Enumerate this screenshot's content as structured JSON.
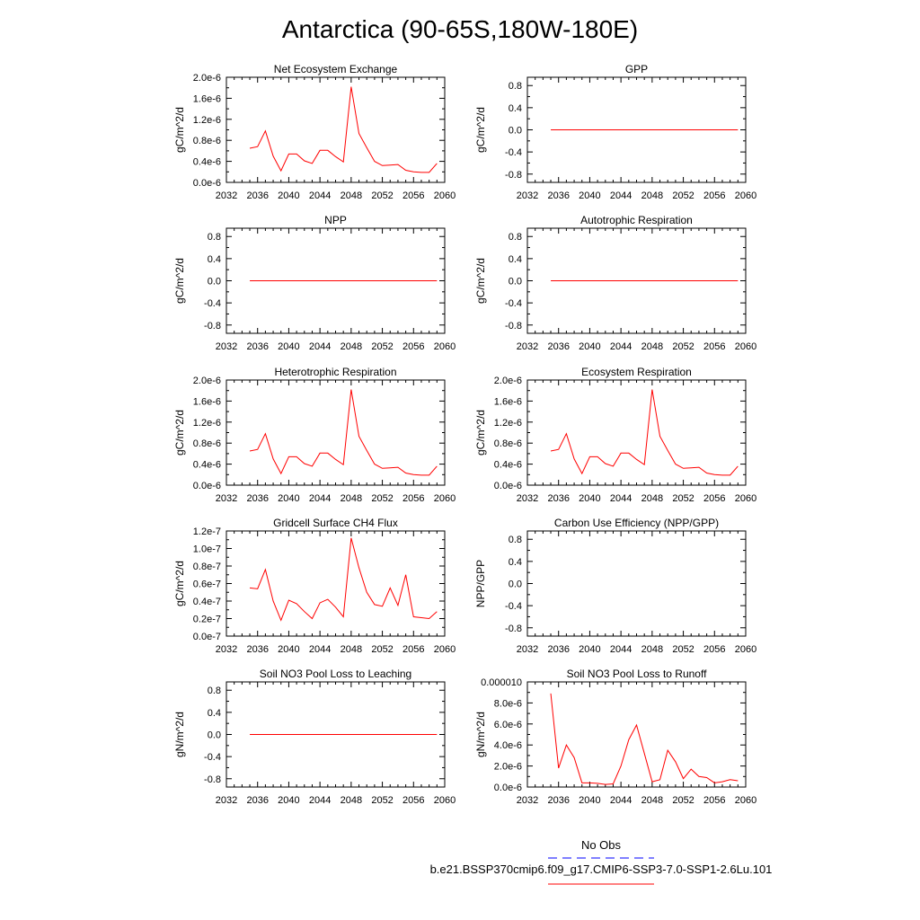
{
  "figure": {
    "title": "Antarctica (90-65S,180W-180E)"
  },
  "legend": {
    "entries": [
      {
        "label": "No Obs",
        "color": "#0000ff",
        "style": "dashed"
      },
      {
        "label": "b.e21.BSSP370cmip6.f09_g17.CMIP6-SSP3-7.0-SSP1-2.6Lu.101",
        "color": "#ff0000",
        "style": "solid"
      }
    ]
  },
  "chart_data": [
    {
      "type": "line",
      "title": "Net Ecosystem Exchange",
      "ylabel": "gC/m^2/d",
      "xlim": [
        2032,
        2060
      ],
      "xticks": [
        "2032",
        "2036",
        "2040",
        "2044",
        "2048",
        "2052",
        "2056",
        "2060"
      ],
      "ylim": [
        0,
        2e-06
      ],
      "yticks": [
        {
          "v": 0,
          "label": "0.0e-6"
        },
        {
          "v": 4e-07,
          "label": "0.4e-6"
        },
        {
          "v": 8e-07,
          "label": "0.8e-6"
        },
        {
          "v": 1.2e-06,
          "label": "1.2e-6"
        },
        {
          "v": 1.6e-06,
          "label": "1.6e-6"
        },
        {
          "v": 2e-06,
          "label": "2.0e-6"
        }
      ],
      "series": [
        {
          "color": "#ff0000",
          "x": [
            2035,
            2036,
            2037,
            2038,
            2039,
            2040,
            2041,
            2042,
            2043,
            2044,
            2045,
            2046,
            2047,
            2048,
            2049,
            2050,
            2051,
            2052,
            2053,
            2054,
            2055,
            2056,
            2057,
            2058,
            2059
          ],
          "values": [
            6.5e-07,
            6.8e-07,
            9.8e-07,
            5e-07,
            2.2e-07,
            5.4e-07,
            5.4e-07,
            4.1e-07,
            3.6e-07,
            6.1e-07,
            6.1e-07,
            4.9e-07,
            3.9e-07,
            1.82e-06,
            9.3e-07,
            6.6e-07,
            4e-07,
            3.2e-07,
            3.3e-07,
            3.4e-07,
            2.3e-07,
            2e-07,
            1.9e-07,
            1.9e-07,
            3.6e-07
          ]
        }
      ]
    },
    {
      "type": "line",
      "title": "GPP",
      "ylabel": "gC/m^2/d",
      "xlim": [
        2032,
        2060
      ],
      "xticks": [
        "2032",
        "2036",
        "2040",
        "2044",
        "2048",
        "2052",
        "2056",
        "2060"
      ],
      "ylim": [
        -0.95,
        0.95
      ],
      "yticks": [
        {
          "v": -0.8,
          "label": "-0.8"
        },
        {
          "v": -0.4,
          "label": "-0.4"
        },
        {
          "v": 0,
          "label": "0.0"
        },
        {
          "v": 0.4,
          "label": "0.4"
        },
        {
          "v": 0.8,
          "label": "0.8"
        }
      ],
      "series": [
        {
          "color": "#ff0000",
          "x": [
            2035,
            2059
          ],
          "values": [
            0,
            0
          ]
        }
      ]
    },
    {
      "type": "line",
      "title": "NPP",
      "ylabel": "gC/m^2/d",
      "xlim": [
        2032,
        2060
      ],
      "xticks": [
        "2032",
        "2036",
        "2040",
        "2044",
        "2048",
        "2052",
        "2056",
        "2060"
      ],
      "ylim": [
        -0.95,
        0.95
      ],
      "yticks": [
        {
          "v": -0.8,
          "label": "-0.8"
        },
        {
          "v": -0.4,
          "label": "-0.4"
        },
        {
          "v": 0,
          "label": "0.0"
        },
        {
          "v": 0.4,
          "label": "0.4"
        },
        {
          "v": 0.8,
          "label": "0.8"
        }
      ],
      "series": [
        {
          "color": "#ff0000",
          "x": [
            2035,
            2059
          ],
          "values": [
            0,
            0
          ]
        }
      ]
    },
    {
      "type": "line",
      "title": "Autotrophic Respiration",
      "ylabel": "gC/m^2/d",
      "xlim": [
        2032,
        2060
      ],
      "xticks": [
        "2032",
        "2036",
        "2040",
        "2044",
        "2048",
        "2052",
        "2056",
        "2060"
      ],
      "ylim": [
        -0.95,
        0.95
      ],
      "yticks": [
        {
          "v": -0.8,
          "label": "-0.8"
        },
        {
          "v": -0.4,
          "label": "-0.4"
        },
        {
          "v": 0,
          "label": "0.0"
        },
        {
          "v": 0.4,
          "label": "0.4"
        },
        {
          "v": 0.8,
          "label": "0.8"
        }
      ],
      "series": [
        {
          "color": "#ff0000",
          "x": [
            2035,
            2059
          ],
          "values": [
            0,
            0
          ]
        }
      ]
    },
    {
      "type": "line",
      "title": "Heterotrophic Respiration",
      "ylabel": "gC/m^2/d",
      "xlim": [
        2032,
        2060
      ],
      "xticks": [
        "2032",
        "2036",
        "2040",
        "2044",
        "2048",
        "2052",
        "2056",
        "2060"
      ],
      "ylim": [
        0,
        2e-06
      ],
      "yticks": [
        {
          "v": 0,
          "label": "0.0e-6"
        },
        {
          "v": 4e-07,
          "label": "0.4e-6"
        },
        {
          "v": 8e-07,
          "label": "0.8e-6"
        },
        {
          "v": 1.2e-06,
          "label": "1.2e-6"
        },
        {
          "v": 1.6e-06,
          "label": "1.6e-6"
        },
        {
          "v": 2e-06,
          "label": "2.0e-6"
        }
      ],
      "series": [
        {
          "color": "#ff0000",
          "x": [
            2035,
            2036,
            2037,
            2038,
            2039,
            2040,
            2041,
            2042,
            2043,
            2044,
            2045,
            2046,
            2047,
            2048,
            2049,
            2050,
            2051,
            2052,
            2053,
            2054,
            2055,
            2056,
            2057,
            2058,
            2059
          ],
          "values": [
            6.5e-07,
            6.8e-07,
            9.8e-07,
            5e-07,
            2.2e-07,
            5.4e-07,
            5.4e-07,
            4.1e-07,
            3.6e-07,
            6.1e-07,
            6.1e-07,
            4.9e-07,
            3.9e-07,
            1.82e-06,
            9.3e-07,
            6.6e-07,
            4e-07,
            3.2e-07,
            3.3e-07,
            3.4e-07,
            2.3e-07,
            2e-07,
            1.9e-07,
            1.9e-07,
            3.6e-07
          ]
        }
      ]
    },
    {
      "type": "line",
      "title": "Ecosystem Respiration",
      "ylabel": "gC/m^2/d",
      "xlim": [
        2032,
        2060
      ],
      "xticks": [
        "2032",
        "2036",
        "2040",
        "2044",
        "2048",
        "2052",
        "2056",
        "2060"
      ],
      "ylim": [
        0,
        2e-06
      ],
      "yticks": [
        {
          "v": 0,
          "label": "0.0e-6"
        },
        {
          "v": 4e-07,
          "label": "0.4e-6"
        },
        {
          "v": 8e-07,
          "label": "0.8e-6"
        },
        {
          "v": 1.2e-06,
          "label": "1.2e-6"
        },
        {
          "v": 1.6e-06,
          "label": "1.6e-6"
        },
        {
          "v": 2e-06,
          "label": "2.0e-6"
        }
      ],
      "series": [
        {
          "color": "#ff0000",
          "x": [
            2035,
            2036,
            2037,
            2038,
            2039,
            2040,
            2041,
            2042,
            2043,
            2044,
            2045,
            2046,
            2047,
            2048,
            2049,
            2050,
            2051,
            2052,
            2053,
            2054,
            2055,
            2056,
            2057,
            2058,
            2059
          ],
          "values": [
            6.5e-07,
            6.8e-07,
            9.8e-07,
            5e-07,
            2.2e-07,
            5.4e-07,
            5.4e-07,
            4.1e-07,
            3.6e-07,
            6.1e-07,
            6.1e-07,
            4.9e-07,
            3.9e-07,
            1.82e-06,
            9.3e-07,
            6.6e-07,
            4e-07,
            3.2e-07,
            3.3e-07,
            3.4e-07,
            2.3e-07,
            2e-07,
            1.9e-07,
            1.9e-07,
            3.6e-07
          ]
        }
      ]
    },
    {
      "type": "line",
      "title": "Gridcell Surface CH4 Flux",
      "ylabel": "gC/m^2/d",
      "xlim": [
        2032,
        2060
      ],
      "xticks": [
        "2032",
        "2036",
        "2040",
        "2044",
        "2048",
        "2052",
        "2056",
        "2060"
      ],
      "ylim": [
        0,
        1.2e-07
      ],
      "yticks": [
        {
          "v": 0,
          "label": "0.0e-7"
        },
        {
          "v": 2e-08,
          "label": "0.2e-7"
        },
        {
          "v": 4e-08,
          "label": "0.4e-7"
        },
        {
          "v": 6e-08,
          "label": "0.6e-7"
        },
        {
          "v": 8e-08,
          "label": "0.8e-7"
        },
        {
          "v": 1e-07,
          "label": "1.0e-7"
        },
        {
          "v": 1.2e-07,
          "label": "1.2e-7"
        }
      ],
      "series": [
        {
          "color": "#ff0000",
          "x": [
            2035,
            2036,
            2037,
            2038,
            2039,
            2040,
            2041,
            2042,
            2043,
            2044,
            2045,
            2046,
            2047,
            2048,
            2049,
            2050,
            2051,
            2052,
            2053,
            2054,
            2055,
            2056,
            2057,
            2058,
            2059
          ],
          "values": [
            5.5e-08,
            5.4e-08,
            7.6e-08,
            4e-08,
            1.8e-08,
            4.1e-08,
            3.7e-08,
            2.8e-08,
            2e-08,
            3.8e-08,
            4.2e-08,
            3.3e-08,
            2.2e-08,
            1.12e-07,
            7.8e-08,
            5e-08,
            3.6e-08,
            3.4e-08,
            5.5e-08,
            3.5e-08,
            7e-08,
            2.2e-08,
            2.1e-08,
            2e-08,
            2.8e-08
          ]
        }
      ]
    },
    {
      "type": "line",
      "title": "Carbon Use Efficiency (NPP/GPP)",
      "ylabel": "NPP/GPP",
      "xlim": [
        2032,
        2060
      ],
      "xticks": [
        "2032",
        "2036",
        "2040",
        "2044",
        "2048",
        "2052",
        "2056",
        "2060"
      ],
      "ylim": [
        -0.95,
        0.95
      ],
      "yticks": [
        {
          "v": -0.8,
          "label": "-0.8"
        },
        {
          "v": -0.4,
          "label": "-0.4"
        },
        {
          "v": 0,
          "label": "0.0"
        },
        {
          "v": 0.4,
          "label": "0.4"
        },
        {
          "v": 0.8,
          "label": "0.8"
        }
      ],
      "series": []
    },
    {
      "type": "line",
      "title": "Soil NO3 Pool Loss to Leaching",
      "ylabel": "gN/m^2/d",
      "xlim": [
        2032,
        2060
      ],
      "xticks": [
        "2032",
        "2036",
        "2040",
        "2044",
        "2048",
        "2052",
        "2056",
        "2060"
      ],
      "ylim": [
        -0.95,
        0.95
      ],
      "yticks": [
        {
          "v": -0.8,
          "label": "-0.8"
        },
        {
          "v": -0.4,
          "label": "-0.4"
        },
        {
          "v": 0,
          "label": "0.0"
        },
        {
          "v": 0.4,
          "label": "0.4"
        },
        {
          "v": 0.8,
          "label": "0.8"
        }
      ],
      "series": [
        {
          "color": "#ff0000",
          "x": [
            2035,
            2059
          ],
          "values": [
            0,
            0
          ]
        }
      ]
    },
    {
      "type": "line",
      "title": "Soil NO3 Pool Loss to Runoff",
      "ylabel": "gN/m^2/d",
      "xlim": [
        2032,
        2060
      ],
      "xticks": [
        "2032",
        "2036",
        "2040",
        "2044",
        "2048",
        "2052",
        "2056",
        "2060"
      ],
      "ylim": [
        0,
        1e-05
      ],
      "yticks": [
        {
          "v": 0,
          "label": "0.0e-6"
        },
        {
          "v": 2e-06,
          "label": "2.0e-6"
        },
        {
          "v": 4e-06,
          "label": "4.0e-6"
        },
        {
          "v": 6e-06,
          "label": "6.0e-6"
        },
        {
          "v": 8e-06,
          "label": "8.0e-6"
        },
        {
          "v": 1e-05,
          "label": "0.000010"
        }
      ],
      "series": [
        {
          "color": "#ff0000",
          "x": [
            2035,
            2036,
            2037,
            2038,
            2039,
            2040,
            2041,
            2042,
            2043,
            2044,
            2045,
            2046,
            2047,
            2048,
            2049,
            2050,
            2051,
            2052,
            2053,
            2054,
            2055,
            2056,
            2057,
            2058,
            2059
          ],
          "values": [
            8.9e-06,
            1.8e-06,
            4e-06,
            2.8e-06,
            4e-07,
            4e-07,
            3.5e-07,
            2.5e-07,
            3e-07,
            2e-06,
            4.5e-06,
            5.9e-06,
            3.2e-06,
            5e-07,
            7e-07,
            3.5e-06,
            2.4e-06,
            8e-07,
            1.7e-06,
            1e-06,
            9e-07,
            4e-07,
            5e-07,
            7e-07,
            6e-07
          ]
        }
      ]
    }
  ]
}
